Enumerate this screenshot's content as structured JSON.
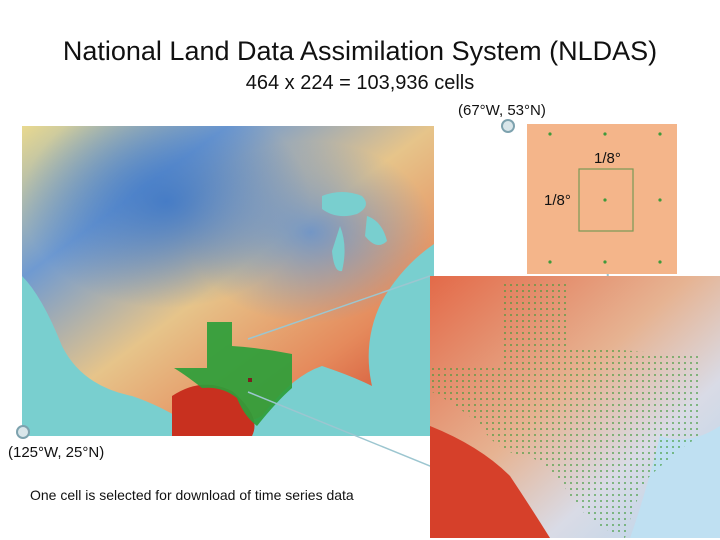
{
  "title": "National Land Data Assimilation System (NLDAS)",
  "subtitle": "464 x 224 = 103,936 cells",
  "corner_ne": "(67°W, 53°N)",
  "corner_sw": "(125°W, 25°N)",
  "grid_spacing_x": "1/8°",
  "grid_spacing_y": "1/8°",
  "caption": "One cell is selected for download of time series data",
  "colors": {
    "cold": "#3f78c6",
    "mid": "#e4d58d",
    "warm": "#e06a45",
    "hot": "#c8301f",
    "ocean": "#79cfcf",
    "selected_state": "#2e9e3a",
    "grid_panel": "#f4b58a"
  }
}
